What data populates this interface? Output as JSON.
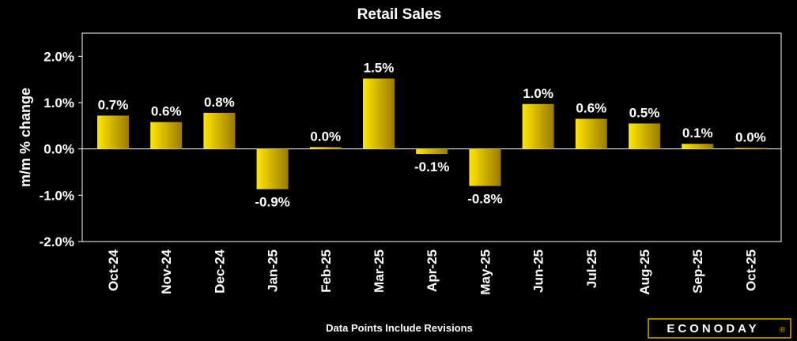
{
  "colors": {
    "background": "#000000",
    "plot_border": "#ffffff",
    "bar_light": "#ffe600",
    "bar_dark": "#9a7a00",
    "text": "#ffffff",
    "logo_accent": "#d4a800"
  },
  "chart_data": {
    "type": "bar",
    "title": "Retail Sales",
    "xlabel": "",
    "ylabel": "m/m % change",
    "ylim": [
      -2.0,
      2.5
    ],
    "yticks": [
      -2.0,
      -1.0,
      0.0,
      1.0,
      2.0
    ],
    "ytick_labels": [
      "-2.0%",
      "-1.0%",
      "0.0%",
      "1.0%",
      "2.0%"
    ],
    "grid": false,
    "legend": "none",
    "categories": [
      "Oct-24",
      "Nov-24",
      "Dec-24",
      "Jan-25",
      "Feb-25",
      "Mar-25",
      "Apr-25",
      "May-25",
      "Jun-25",
      "Jul-25",
      "Aug-25",
      "Sep-25",
      "Oct-25"
    ],
    "values": [
      0.72,
      0.58,
      0.78,
      -0.87,
      0.04,
      1.52,
      -0.11,
      -0.8,
      0.97,
      0.65,
      0.55,
      0.11,
      0.02
    ],
    "data_labels": [
      "0.7%",
      "0.6%",
      "0.8%",
      "-0.9%",
      "0.0%",
      "1.5%",
      "-0.1%",
      "-0.8%",
      "1.0%",
      "0.6%",
      "0.5%",
      "0.1%",
      "0.0%"
    ]
  },
  "footnote": "Data Points Include Revisions",
  "logo": {
    "text": "ECONODAY",
    "mark": "®"
  }
}
